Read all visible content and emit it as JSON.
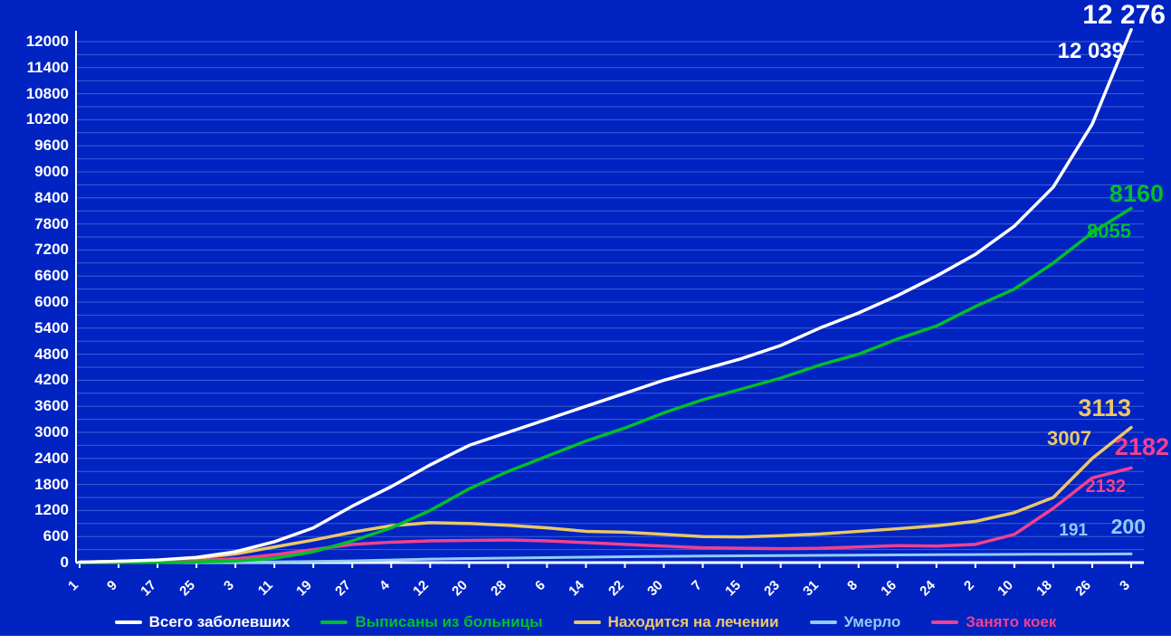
{
  "colors": {
    "background": "#0023c1",
    "grid": "#3f5ed6",
    "axis": "#ffffff",
    "total": "#ffffff",
    "discharged": "#00bf2a",
    "treatment": "#eac768",
    "died": "#8fcdf5",
    "beds": "#f0418f"
  },
  "chart_data": {
    "type": "line",
    "title": "",
    "xlabel": "",
    "ylabel": "",
    "ylim": [
      0,
      12000
    ],
    "ymax": 12000,
    "ytick_step": 600,
    "grid_step": 300,
    "grid": true,
    "legend_position": "bottom",
    "yticks": [
      "12000",
      "11400",
      "10800",
      "10200",
      "9600",
      "9000",
      "8400",
      "7800",
      "7200",
      "6600",
      "6000",
      "5400",
      "4800",
      "4200",
      "3600",
      "3000",
      "2400",
      "1800",
      "1200",
      "600",
      "0"
    ],
    "categories": [
      "1",
      "9",
      "17",
      "25",
      "3",
      "11",
      "19",
      "27",
      "4",
      "12",
      "20",
      "28",
      "6",
      "14",
      "22",
      "30",
      "7",
      "15",
      "23",
      "31",
      "8",
      "16",
      "24",
      "2",
      "10",
      "18",
      "26",
      "3"
    ],
    "series": [
      {
        "key": "total",
        "name": "Всего заболевших",
        "values": [
          10,
          30,
          60,
          120,
          250,
          480,
          800,
          1300,
          1750,
          2250,
          2700,
          3000,
          3300,
          3600,
          3900,
          4200,
          4450,
          4700,
          5000,
          5400,
          5750,
          6150,
          6600,
          7100,
          7750,
          8650,
          10100,
          12276
        ]
      },
      {
        "key": "discharged",
        "name": "Выписаны из больницы",
        "values": [
          0,
          0,
          5,
          15,
          40,
          100,
          250,
          500,
          800,
          1200,
          1700,
          2100,
          2450,
          2800,
          3100,
          3450,
          3750,
          4000,
          4250,
          4550,
          4800,
          5150,
          5450,
          5900,
          6300,
          6900,
          7600,
          8160
        ]
      },
      {
        "key": "treatment",
        "name": "Находится на лечении",
        "values": [
          10,
          30,
          55,
          100,
          200,
          360,
          520,
          700,
          850,
          920,
          900,
          860,
          800,
          720,
          700,
          650,
          600,
          590,
          620,
          660,
          720,
          780,
          850,
          950,
          1150,
          1500,
          2400,
          3113
        ]
      },
      {
        "key": "died",
        "name": "Умерло",
        "values": [
          0,
          1,
          2,
          4,
          8,
          15,
          25,
          40,
          60,
          80,
          95,
          105,
          115,
          125,
          135,
          143,
          150,
          156,
          162,
          167,
          172,
          177,
          182,
          186,
          190,
          193,
          196,
          200
        ]
      },
      {
        "key": "beds",
        "name": "Занято коек",
        "values": [
          0,
          5,
          15,
          40,
          90,
          180,
          300,
          420,
          470,
          500,
          510,
          520,
          500,
          460,
          420,
          380,
          340,
          330,
          320,
          330,
          360,
          390,
          380,
          420,
          650,
          1250,
          1950,
          2182
        ]
      }
    ],
    "annotations": {
      "total": {
        "current": "12 276",
        "previous": "12 039"
      },
      "discharged": {
        "current": "8160",
        "previous": "8055"
      },
      "treatment": {
        "current": "3113",
        "previous": "3007"
      },
      "beds": {
        "current": "2182",
        "previous": "2132"
      },
      "died": {
        "current": "200",
        "previous": "191"
      }
    }
  }
}
